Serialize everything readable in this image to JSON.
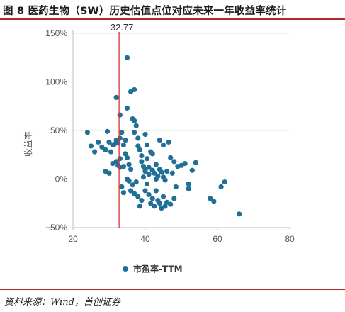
{
  "title": "图 8 医药生物（SW）历史估值点位对应未来一年收益率统计",
  "source": "资料来源：Wind，首创证券",
  "chart_data": {
    "type": "scatter",
    "title": "图 8 医药生物（SW）历史估值点位对应未来一年收益率统计",
    "xlabel": "",
    "ylabel": "收益率",
    "xlim": [
      20,
      80
    ],
    "ylim": [
      -50,
      150
    ],
    "x_ticks": [
      "20",
      "40",
      "60",
      "80"
    ],
    "y_ticks": [
      "150%",
      "100%",
      "50%",
      "0%",
      "−50%"
    ],
    "grid": "horizontal",
    "legend_position": "bottom",
    "vline": {
      "x": 32.77,
      "label": "32.77",
      "color": "#d9342b"
    },
    "series": [
      {
        "name": "市盈率-TTM",
        "color": "#1f6f96",
        "points": [
          [
            35,
            125
          ],
          [
            37,
            92
          ],
          [
            36,
            90
          ],
          [
            32,
            84
          ],
          [
            33,
            66
          ],
          [
            35,
            73
          ],
          [
            24,
            48
          ],
          [
            25,
            34
          ],
          [
            26,
            28
          ],
          [
            27,
            38
          ],
          [
            28,
            33
          ],
          [
            29,
            30
          ],
          [
            29.5,
            49
          ],
          [
            30,
            38
          ],
          [
            30.5,
            28
          ],
          [
            31,
            35
          ],
          [
            31.5,
            36
          ],
          [
            32,
            40
          ],
          [
            32.5,
            37
          ],
          [
            33,
            42
          ],
          [
            33.5,
            48
          ],
          [
            34,
            35
          ],
          [
            34.5,
            40
          ],
          [
            29,
            8
          ],
          [
            30,
            6
          ],
          [
            31,
            16
          ],
          [
            32,
            18
          ],
          [
            32.5,
            14
          ],
          [
            33,
            21
          ],
          [
            33,
            12
          ],
          [
            34,
            13
          ],
          [
            34.5,
            26
          ],
          [
            35,
            22
          ],
          [
            35.5,
            15
          ],
          [
            36,
            10
          ],
          [
            36.5,
            62
          ],
          [
            37,
            60
          ],
          [
            37,
            48
          ],
          [
            37.5,
            55
          ],
          [
            38,
            42
          ],
          [
            38,
            34
          ],
          [
            38.5,
            30
          ],
          [
            39,
            24
          ],
          [
            39,
            18
          ],
          [
            39.5,
            13
          ],
          [
            40,
            8
          ],
          [
            40,
            46
          ],
          [
            40.5,
            35
          ],
          [
            40.5,
            21
          ],
          [
            41,
            12
          ],
          [
            41,
            5
          ],
          [
            41.5,
            28
          ],
          [
            42,
            26
          ],
          [
            42,
            9
          ],
          [
            42.5,
            6
          ],
          [
            43,
            0
          ],
          [
            43,
            15
          ],
          [
            43.5,
            3
          ],
          [
            44,
            10
          ],
          [
            44,
            40
          ],
          [
            44.5,
            7
          ],
          [
            45,
            2
          ],
          [
            45,
            35
          ],
          [
            45.5,
            -1
          ],
          [
            46,
            8
          ],
          [
            46.5,
            38
          ],
          [
            47,
            22
          ],
          [
            47.5,
            6
          ],
          [
            48,
            18
          ],
          [
            48.5,
            -8
          ],
          [
            49,
            13
          ],
          [
            50,
            14
          ],
          [
            51,
            16
          ],
          [
            52,
            -5
          ],
          [
            53,
            9
          ],
          [
            54,
            17
          ],
          [
            35,
            0
          ],
          [
            35.5,
            -2
          ],
          [
            36,
            -12
          ],
          [
            37,
            -15
          ],
          [
            38,
            -18
          ],
          [
            38.5,
            -28
          ],
          [
            39,
            -22
          ],
          [
            40,
            -12
          ],
          [
            40.5,
            -5
          ],
          [
            41,
            -16
          ],
          [
            41.5,
            -25
          ],
          [
            42,
            -20
          ],
          [
            42.5,
            -28
          ],
          [
            43,
            -12
          ],
          [
            43.5,
            -22
          ],
          [
            44,
            -25
          ],
          [
            44.5,
            -30
          ],
          [
            45,
            -18
          ],
          [
            45.5,
            -28
          ],
          [
            46,
            -24
          ],
          [
            47,
            -26
          ],
          [
            48,
            -20
          ],
          [
            33.5,
            -8
          ],
          [
            34,
            -14
          ],
          [
            36.5,
            -6
          ],
          [
            37.5,
            -3
          ],
          [
            39.5,
            2
          ],
          [
            40,
            10
          ],
          [
            52,
            -10
          ],
          [
            58,
            -20
          ],
          [
            59,
            -23
          ],
          [
            61,
            -8
          ],
          [
            62,
            -3
          ],
          [
            66,
            -36
          ]
        ]
      }
    ]
  }
}
